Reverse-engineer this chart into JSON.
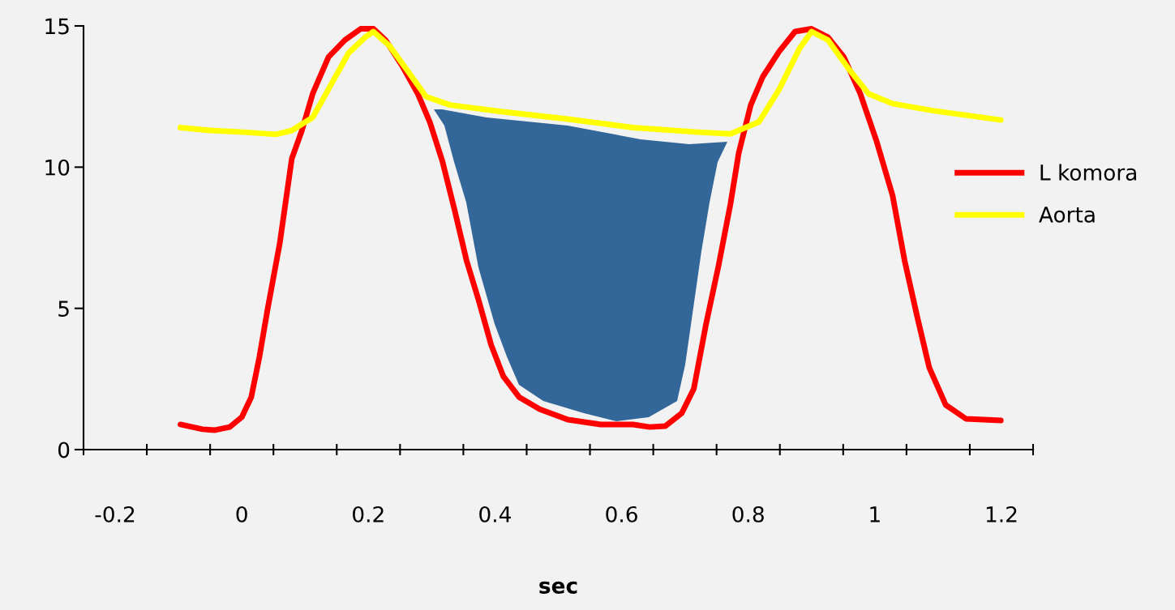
{
  "chart_data": {
    "type": "line",
    "xlabel": "sec",
    "xlim": [
      -0.25,
      1.25
    ],
    "ylim": [
      0,
      15
    ],
    "xticks": [
      {
        "value": -0.25,
        "label": null
      },
      {
        "value": -0.2,
        "label": "-0.2"
      },
      {
        "value": -0.15,
        "label": null
      },
      {
        "value": -0.05,
        "label": null
      },
      {
        "value": 0,
        "label": "0"
      },
      {
        "value": 0.05,
        "label": null
      },
      {
        "value": 0.15,
        "label": null
      },
      {
        "value": 0.2,
        "label": "0.2"
      },
      {
        "value": 0.25,
        "label": null
      },
      {
        "value": 0.35,
        "label": null
      },
      {
        "value": 0.4,
        "label": "0.4"
      },
      {
        "value": 0.45,
        "label": null
      },
      {
        "value": 0.55,
        "label": null
      },
      {
        "value": 0.6,
        "label": "0.6"
      },
      {
        "value": 0.65,
        "label": null
      },
      {
        "value": 0.75,
        "label": null
      },
      {
        "value": 0.8,
        "label": "0.8"
      },
      {
        "value": 0.85,
        "label": null
      },
      {
        "value": 0.95,
        "label": null
      },
      {
        "value": 1,
        "label": "1"
      },
      {
        "value": 1.05,
        "label": null
      },
      {
        "value": 1.15,
        "label": null
      },
      {
        "value": 1.2,
        "label": "1.2"
      },
      {
        "value": 1.25,
        "label": null
      }
    ],
    "yticks": [
      0,
      5,
      10,
      15
    ],
    "grid": false,
    "legend": "right",
    "marker": "none",
    "line_style": "solid",
    "series": [
      {
        "name": "L komora",
        "color": "#ff0000",
        "x": [
          -0.097,
          -0.062,
          -0.042,
          -0.019,
          0,
          0.015,
          0.028,
          0.041,
          0.06,
          0.079,
          0.095,
          0.112,
          0.137,
          0.163,
          0.188,
          0.208,
          0.227,
          0.253,
          0.278,
          0.297,
          0.317,
          0.336,
          0.355,
          0.374,
          0.394,
          0.413,
          0.438,
          0.471,
          0.515,
          0.567,
          0.618,
          0.644,
          0.669,
          0.695,
          0.714,
          0.733,
          0.753,
          0.772,
          0.785,
          0.804,
          0.823,
          0.849,
          0.874,
          0.9,
          0.926,
          0.951,
          0.977,
          1.003,
          1.028,
          1.047,
          1.067,
          1.086,
          1.112,
          1.144,
          1.199
        ],
        "values": [
          0.89,
          0.72,
          0.69,
          0.8,
          1.15,
          1.86,
          3.3,
          5.0,
          7.3,
          10.3,
          11.3,
          12.6,
          13.9,
          14.5,
          14.9,
          14.9,
          14.5,
          13.6,
          12.6,
          11.6,
          10.2,
          8.5,
          6.7,
          5.3,
          3.7,
          2.6,
          1.86,
          1.43,
          1.06,
          0.89,
          0.89,
          0.8,
          0.83,
          1.29,
          2.15,
          4.4,
          6.5,
          8.7,
          10.5,
          12.2,
          13.2,
          14.1,
          14.8,
          14.9,
          14.6,
          13.9,
          12.6,
          10.9,
          9.0,
          6.7,
          4.7,
          2.9,
          1.58,
          1.09,
          1.03
        ]
      },
      {
        "name": "Aorta",
        "color": "#ffff00",
        "x": [
          -0.097,
          -0.049,
          0.003,
          0.054,
          0.079,
          0.112,
          0.137,
          0.169,
          0.195,
          0.208,
          0.233,
          0.259,
          0.291,
          0.329,
          0.413,
          0.515,
          0.618,
          0.721,
          0.772,
          0.817,
          0.849,
          0.881,
          0.9,
          0.926,
          0.958,
          0.99,
          1.028,
          1.092,
          1.199
        ],
        "values": [
          11.4,
          11.3,
          11.24,
          11.16,
          11.3,
          11.76,
          12.76,
          14.05,
          14.6,
          14.8,
          14.3,
          13.5,
          12.5,
          12.2,
          11.96,
          11.7,
          11.4,
          11.24,
          11.18,
          11.6,
          12.76,
          14.2,
          14.8,
          14.5,
          13.5,
          12.6,
          12.25,
          12.0,
          11.67
        ]
      }
    ]
  }
}
